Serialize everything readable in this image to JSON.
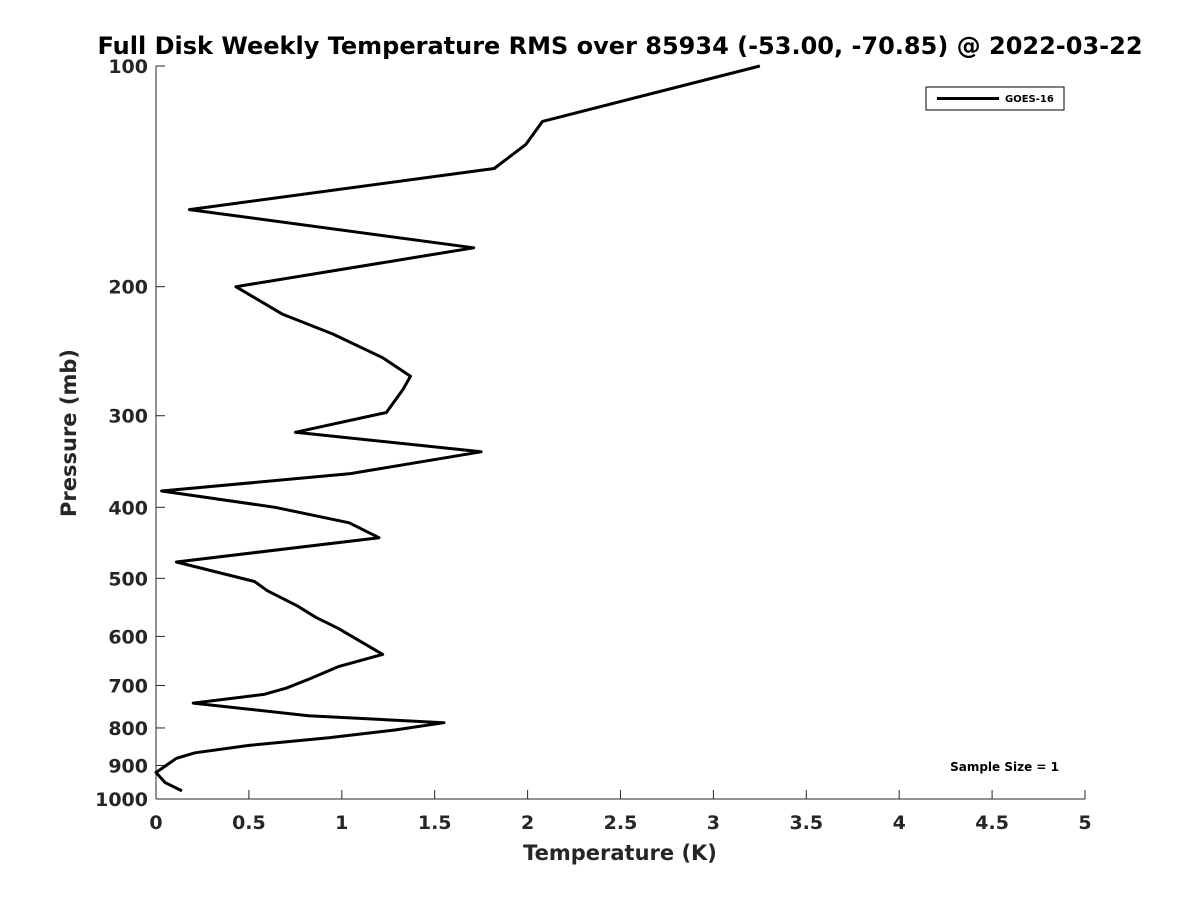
{
  "chart_data": {
    "type": "line",
    "title": "Full Disk Weekly Temperature RMS over 85934 (-53.00, -70.85) @ 2022-03-22",
    "xlabel": "Temperature (K)",
    "ylabel": "Pressure (mb)",
    "xlim": [
      0,
      5
    ],
    "ylim": [
      100,
      1000
    ],
    "y_scale": "log",
    "y_reversed": true,
    "grid": false,
    "x_ticks": [
      0,
      0.5,
      1,
      1.5,
      2,
      2.5,
      3,
      3.5,
      4,
      4.5,
      5
    ],
    "x_tick_labels": [
      "0",
      "0.5",
      "1",
      "1.5",
      "2",
      "2.5",
      "3",
      "3.5",
      "4",
      "4.5",
      "5"
    ],
    "y_ticks": [
      100,
      200,
      300,
      400,
      500,
      600,
      700,
      800,
      900,
      1000
    ],
    "y_tick_labels": [
      "100",
      "200",
      "300",
      "400",
      "500",
      "600",
      "700",
      "800",
      "900",
      "1000"
    ],
    "legend": {
      "position": "top-right",
      "entries": [
        "GOES-16"
      ]
    },
    "annotation": "Sample Size = 1",
    "series": [
      {
        "name": "GOES-16",
        "color": "#000000",
        "x": [
          3.25,
          2.08,
          1.99,
          1.82,
          0.18,
          1.71,
          0.43,
          0.68,
          0.95,
          1.22,
          1.37,
          1.33,
          1.24,
          0.75,
          1.75,
          1.04,
          0.03,
          0.64,
          1.04,
          1.2,
          0.11,
          0.53,
          0.6,
          0.76,
          0.86,
          0.98,
          1.22,
          0.98,
          0.83,
          0.7,
          0.58,
          0.2,
          0.82,
          1.55,
          1.29,
          0.93,
          0.5,
          0.21,
          0.11,
          0.0,
          0.05,
          0.14
        ],
        "y": [
          100,
          119,
          128,
          138,
          157,
          177,
          200,
          218,
          232,
          250,
          265,
          276,
          297,
          316,
          336,
          360,
          380,
          400,
          420,
          440,
          475,
          505,
          520,
          545,
          565,
          585,
          635,
          660,
          685,
          706,
          720,
          740,
          770,
          787,
          805,
          825,
          845,
          865,
          880,
          920,
          950,
          975
        ]
      }
    ]
  }
}
